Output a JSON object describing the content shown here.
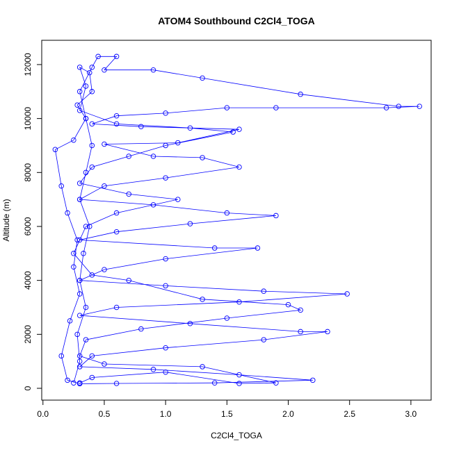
{
  "chart_data": {
    "type": "line",
    "markers": true,
    "title": "ATOM4 Southbound C2Cl4_TOGA",
    "x_label": "C2Cl4_TOGA",
    "y_label": "Altitude (m)",
    "color": "#0000ff",
    "xlim": [
      -0.01,
      3.165
    ],
    "ylim": [
      -438,
      12900
    ],
    "xticks": [
      {
        "value": 0,
        "label": "0.0"
      },
      0.5,
      {
        "value": 1,
        "label": "1.0"
      },
      1.5,
      {
        "value": 2,
        "label": "2.0"
      },
      2.5,
      {
        "value": 3,
        "label": "3.0"
      }
    ],
    "yticks": [
      0,
      2000,
      4000,
      6000,
      8000,
      10000,
      12000
    ],
    "x": [
      0.25,
      0.3,
      0.28,
      0.35,
      0.3,
      0.33,
      0.38,
      0.3,
      0.35,
      0.4,
      0.35,
      0.3,
      0.4,
      0.45,
      0.6,
      0.5,
      0.9,
      1.3,
      2.1,
      2.9,
      3.07,
      2.8,
      1.9,
      1.5,
      1.0,
      0.6,
      0.4,
      0.8,
      1.6,
      1.1,
      0.5,
      0.9,
      1.3,
      1.6,
      1.0,
      0.5,
      0.3,
      0.9,
      1.5,
      1.9,
      1.2,
      0.6,
      0.3,
      1.4,
      1.75,
      1.0,
      0.5,
      0.3,
      1.0,
      1.8,
      2.48,
      1.6,
      0.6,
      0.3,
      1.2,
      2.1,
      2.32,
      1.8,
      1.0,
      0.4,
      0.3,
      0.9,
      1.6,
      2.2,
      1.4,
      0.6,
      0.3,
      0.2,
      0.15,
      0.22,
      0.3,
      0.25,
      0.28,
      0.2,
      0.15,
      0.1,
      0.25,
      0.35,
      0.28,
      0.4,
      0.38,
      0.3,
      0.35,
      0.3,
      0.6,
      1.2,
      1.55,
      1.0,
      0.7,
      0.4,
      0.3,
      0.7,
      1.1,
      0.6,
      0.35,
      0.25,
      0.4,
      0.7,
      1.3,
      2.0,
      2.1,
      1.5,
      0.8,
      0.35,
      0.3,
      0.5,
      1.3,
      1.9,
      1.6,
      1.0,
      0.4,
      0.3
    ],
    "y": [
      200,
      1000,
      2000,
      3000,
      4000,
      5000,
      6000,
      7000,
      8000,
      9000,
      10000,
      11000,
      11900,
      12300,
      12300,
      11800,
      11800,
      11500,
      10900,
      10450,
      10450,
      10400,
      10400,
      10400,
      10200,
      10100,
      9800,
      9700,
      9600,
      9100,
      9050,
      8600,
      8550,
      8200,
      7800,
      7500,
      7000,
      6800,
      6500,
      6400,
      6100,
      5800,
      5500,
      5200,
      5200,
      4800,
      4400,
      4000,
      3800,
      3600,
      3500,
      3200,
      3000,
      2700,
      2400,
      2100,
      2100,
      1800,
      1500,
      1200,
      800,
      700,
      500,
      300,
      200,
      180,
      170,
      300,
      1200,
      2500,
      3500,
      4500,
      5500,
      6500,
      7500,
      8850,
      9200,
      10000,
      10500,
      11000,
      11700,
      11900,
      11200,
      10300,
      9800,
      9650,
      9500,
      9000,
      8600,
      8200,
      7600,
      7200,
      7000,
      6500,
      6000,
      5000,
      4200,
      4000,
      3300,
      3100,
      2900,
      2600,
      2200,
      1800,
      1200,
      900,
      800,
      200,
      180,
      600,
      400,
      200
    ]
  }
}
